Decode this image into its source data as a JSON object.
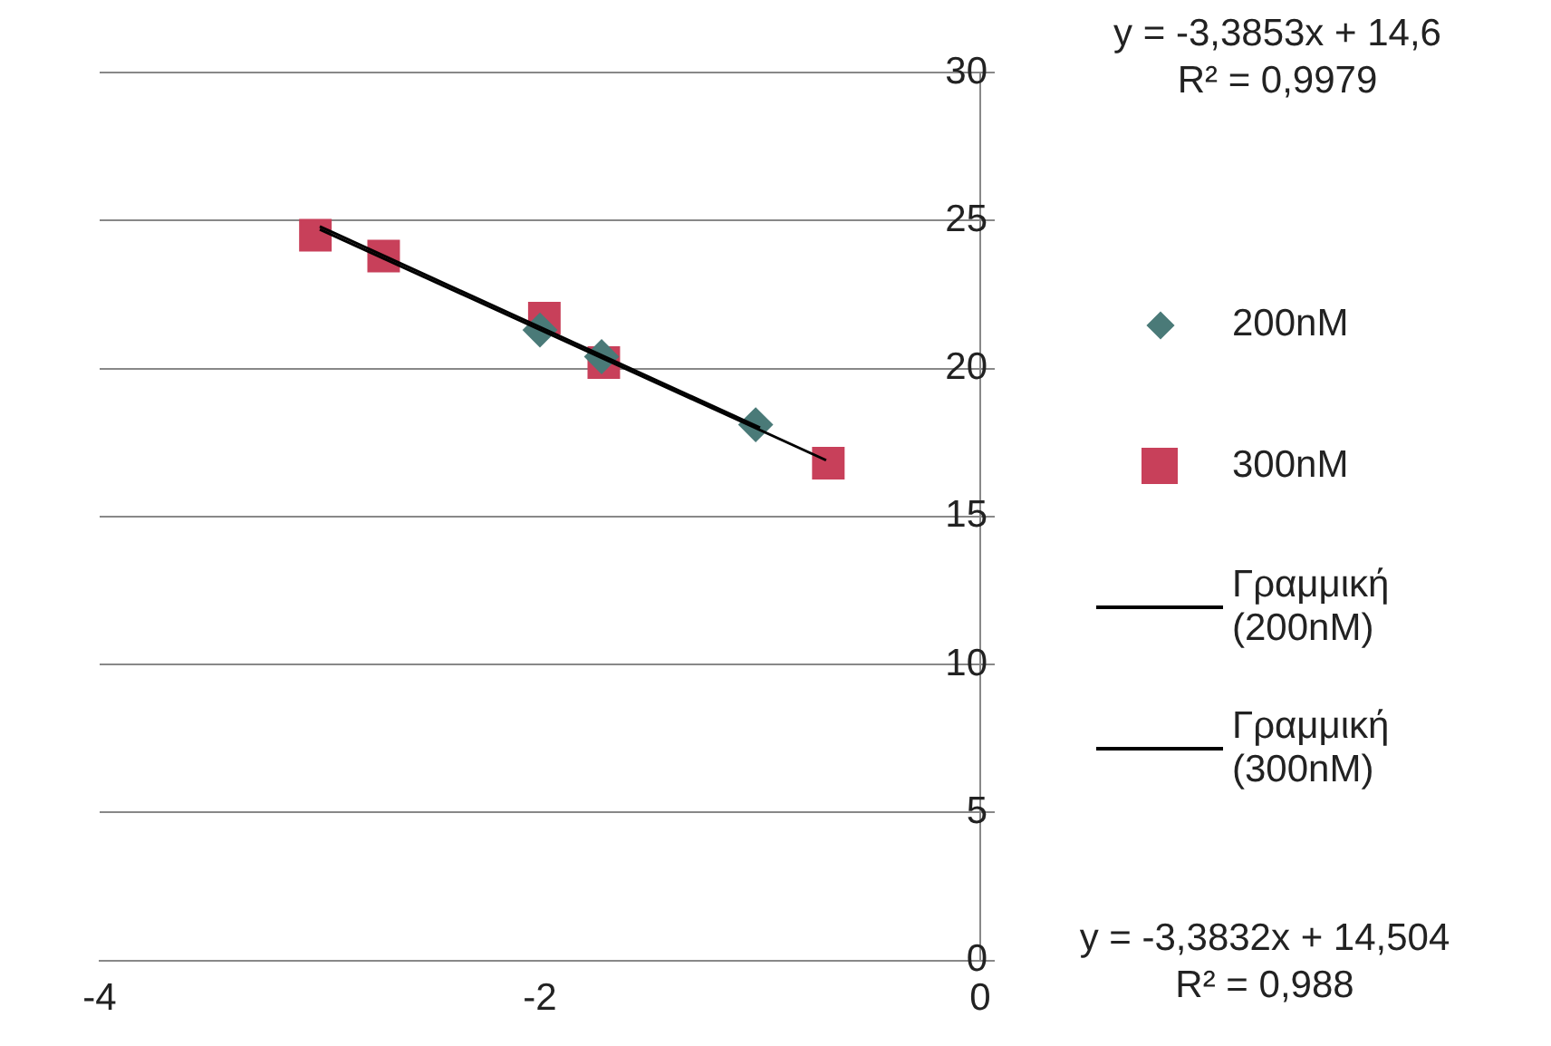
{
  "chart_data": {
    "type": "scatter",
    "xlim": [
      -4,
      0
    ],
    "xticks": [
      -4,
      -2,
      0
    ],
    "ylim": [
      0,
      30
    ],
    "yticks": [
      0,
      5,
      10,
      15,
      20,
      25,
      30
    ],
    "grid": "y",
    "legend": "right",
    "series": [
      {
        "name": "200nM",
        "marker": "diamond",
        "color": "#4a7a78",
        "x": [
          -2.0,
          -1.72,
          -1.02
        ],
        "values": [
          21.3,
          20.4,
          18.1
        ]
      },
      {
        "name": "300nM",
        "marker": "square",
        "color": "#c8405a",
        "x": [
          -3.02,
          -2.71,
          -1.98,
          -1.71,
          -0.69
        ],
        "values": [
          24.5,
          23.8,
          21.7,
          20.2,
          16.8
        ]
      },
      {
        "name": "Γραμμική (200nM)",
        "type": "line",
        "marker": "none",
        "color": "#000000",
        "x": [
          -3.0,
          -1.0
        ],
        "values": [
          24.8,
          18.0
        ]
      },
      {
        "name": "Γραμμική (300nM)",
        "type": "line",
        "marker": "none",
        "color": "#000000",
        "x": [
          -3.0,
          -0.7
        ],
        "values": [
          24.7,
          16.9
        ]
      }
    ],
    "annotations": [
      "y = -3,3853x + 14,6\nR² = 0,9979",
      "y = -3,3832x + 14,504\nR² = 0,988"
    ]
  }
}
